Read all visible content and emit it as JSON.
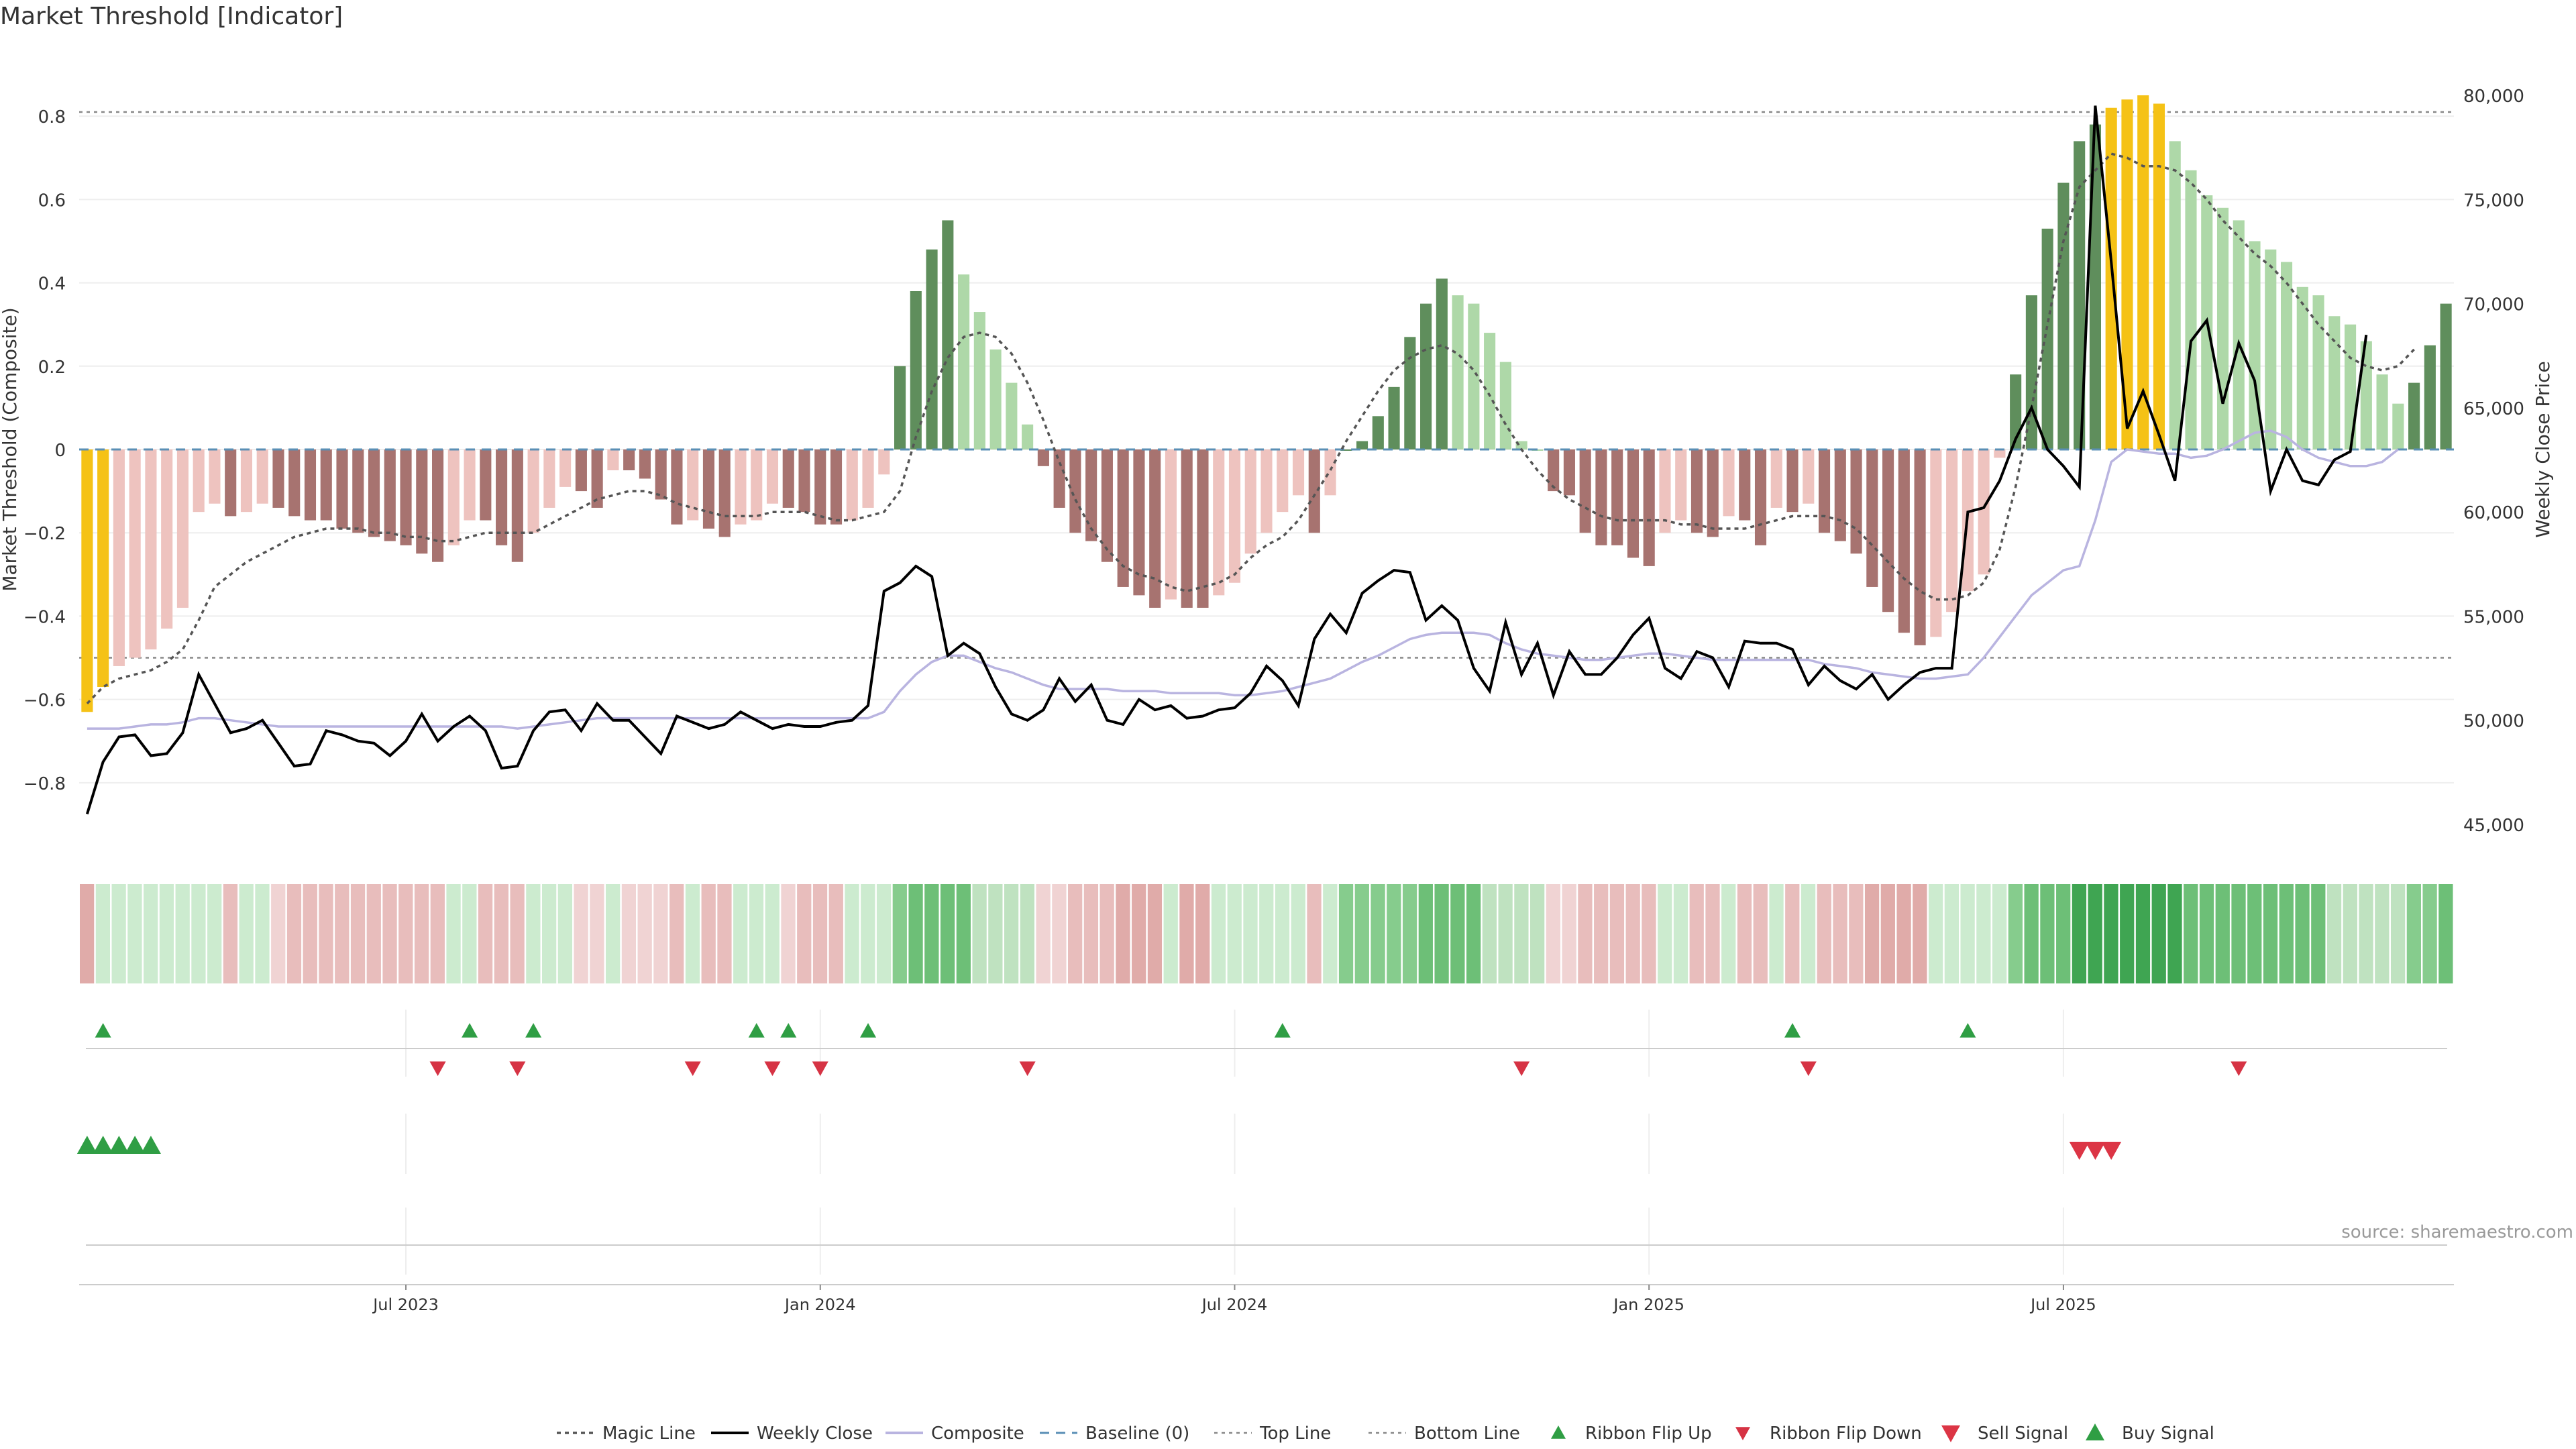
{
  "title": "Market Threshold [Indicator]",
  "source": "source: sharemaestro.com",
  "chart_data": {
    "type": "bar",
    "y_left": {
      "label": "Market Threshold (Composite)",
      "range": [
        -0.95,
        0.95
      ],
      "ticks": [
        0.8,
        0.6,
        0.4,
        0.2,
        0,
        -0.2,
        -0.4,
        -0.6,
        -0.8
      ],
      "tick_labels": [
        "0.8",
        "0.6",
        "0.4",
        "0.2",
        "0",
        "−0.2",
        "−0.4",
        "−0.6",
        "−0.8"
      ]
    },
    "y_right": {
      "label": "Weekly Close Price",
      "range": [
        44000,
        82000
      ],
      "ticks": [
        80000,
        75000,
        70000,
        65000,
        60000,
        55000,
        50000,
        45000
      ],
      "tick_labels": [
        "80,000",
        "75,000",
        "70,000",
        "65,000",
        "60,000",
        "55,000",
        "50,000",
        "45,000"
      ]
    },
    "x_axis": {
      "start": "2023-01-09",
      "weeks": 144,
      "ticks": [
        {
          "label": "Jul 2023",
          "week": 20
        },
        {
          "label": "Jan 2024",
          "week": 46
        },
        {
          "label": "Jul 2024",
          "week": 72
        },
        {
          "label": "Jan 2025",
          "week": 98
        },
        {
          "label": "Jul 2025",
          "week": 124
        }
      ]
    },
    "top_line": 0.81,
    "bottom_line": -0.5,
    "baseline": 0,
    "composite_bars": [
      -0.63,
      -0.57,
      -0.52,
      -0.5,
      -0.48,
      -0.43,
      -0.38,
      -0.15,
      -0.13,
      -0.16,
      -0.15,
      -0.13,
      -0.14,
      -0.16,
      -0.17,
      -0.17,
      -0.19,
      -0.2,
      -0.21,
      -0.22,
      -0.23,
      -0.25,
      -0.27,
      -0.23,
      -0.17,
      -0.17,
      -0.23,
      -0.27,
      -0.2,
      -0.14,
      -0.09,
      -0.1,
      -0.14,
      -0.05,
      -0.05,
      -0.07,
      -0.12,
      -0.18,
      -0.17,
      -0.19,
      -0.21,
      -0.18,
      -0.17,
      -0.13,
      -0.14,
      -0.15,
      -0.18,
      -0.18,
      -0.17,
      -0.14,
      -0.06,
      0.2,
      0.38,
      0.48,
      0.55,
      0.42,
      0.33,
      0.24,
      0.16,
      0.06,
      -0.04,
      -0.14,
      -0.2,
      -0.22,
      -0.27,
      -0.33,
      -0.35,
      -0.38,
      -0.36,
      -0.38,
      -0.38,
      -0.35,
      -0.32,
      -0.25,
      -0.2,
      -0.15,
      -0.11,
      -0.2,
      -0.11,
      0.0,
      0.02,
      0.08,
      0.15,
      0.27,
      0.35,
      0.41,
      0.37,
      0.35,
      0.28,
      0.21,
      0.02,
      0.0,
      -0.1,
      -0.11,
      -0.2,
      -0.23,
      -0.23,
      -0.26,
      -0.28,
      -0.2,
      -0.17,
      -0.2,
      -0.21,
      -0.16,
      -0.17,
      -0.23,
      -0.14,
      -0.15,
      -0.13,
      -0.2,
      -0.22,
      -0.25,
      -0.33,
      -0.39,
      -0.44,
      -0.47,
      -0.45,
      -0.39,
      -0.34,
      -0.3,
      -0.02,
      0.18,
      0.37,
      0.53,
      0.64,
      0.74,
      0.78,
      0.82,
      0.84,
      0.85,
      0.83,
      0.74,
      0.67,
      0.61,
      0.58,
      0.55,
      0.5,
      0.48,
      0.45,
      0.39,
      0.37,
      0.32,
      0.3,
      0.26,
      0.18,
      0.11,
      0.16,
      0.25,
      0.35
    ],
    "weekly_close": [
      45500,
      48000,
      49200,
      49300,
      48300,
      48400,
      49400,
      52200,
      50800,
      49400,
      49600,
      50000,
      48900,
      47800,
      47900,
      49500,
      49300,
      49000,
      48900,
      48300,
      49000,
      50300,
      49000,
      49700,
      50200,
      49500,
      47700,
      47800,
      49500,
      50400,
      50500,
      49500,
      50800,
      50000,
      50000,
      49200,
      48400,
      50200,
      49900,
      49600,
      49800,
      50400,
      50000,
      49600,
      49800,
      49700,
      49700,
      49900,
      50000,
      50700,
      56200,
      56600,
      57400,
      56900,
      53100,
      53700,
      53200,
      51600,
      50300,
      50000,
      50500,
      52000,
      50900,
      51700,
      50000,
      49800,
      51000,
      50500,
      50700,
      50100,
      50200,
      50500,
      50600,
      51300,
      52600,
      51900,
      50700,
      53900,
      55100,
      54200,
      56100,
      56700,
      57200,
      57100,
      54800,
      55500,
      54800,
      52500,
      51400,
      54700,
      52200,
      53700,
      51200,
      53300,
      52200,
      52200,
      53000,
      54100,
      54900,
      52500,
      52000,
      53300,
      53000,
      51600,
      53800,
      53700,
      53700,
      53400,
      51700,
      52600,
      51900,
      51500,
      52200,
      51000,
      51700,
      52300,
      52500,
      52500,
      60000,
      60200,
      61500,
      63500,
      65000,
      63000,
      62200,
      61200,
      79500,
      72000,
      64000,
      65800,
      63700,
      61500,
      68200,
      69200,
      65200,
      68100,
      66300,
      61000,
      63000,
      61500,
      61300,
      62500,
      62900,
      68500
    ],
    "composite_line": [
      -0.67,
      -0.67,
      -0.67,
      -0.665,
      -0.66,
      -0.66,
      -0.655,
      -0.645,
      -0.645,
      -0.65,
      -0.655,
      -0.66,
      -0.665,
      -0.665,
      -0.665,
      -0.665,
      -0.665,
      -0.665,
      -0.665,
      -0.665,
      -0.665,
      -0.665,
      -0.665,
      -0.665,
      -0.665,
      -0.665,
      -0.665,
      -0.67,
      -0.665,
      -0.66,
      -0.655,
      -0.65,
      -0.645,
      -0.645,
      -0.645,
      -0.645,
      -0.645,
      -0.645,
      -0.645,
      -0.645,
      -0.645,
      -0.645,
      -0.645,
      -0.645,
      -0.645,
      -0.645,
      -0.645,
      -0.645,
      -0.645,
      -0.645,
      -0.63,
      -0.58,
      -0.54,
      -0.51,
      -0.495,
      -0.495,
      -0.51,
      -0.525,
      -0.535,
      -0.55,
      -0.565,
      -0.575,
      -0.575,
      -0.575,
      -0.575,
      -0.58,
      -0.58,
      -0.58,
      -0.585,
      -0.585,
      -0.585,
      -0.585,
      -0.59,
      -0.59,
      -0.585,
      -0.58,
      -0.57,
      -0.56,
      -0.55,
      -0.53,
      -0.51,
      -0.495,
      -0.475,
      -0.455,
      -0.445,
      -0.44,
      -0.44,
      -0.44,
      -0.445,
      -0.465,
      -0.48,
      -0.49,
      -0.495,
      -0.5,
      -0.505,
      -0.505,
      -0.5,
      -0.495,
      -0.49,
      -0.49,
      -0.495,
      -0.5,
      -0.505,
      -0.505,
      -0.505,
      -0.505,
      -0.505,
      -0.505,
      -0.505,
      -0.515,
      -0.52,
      -0.525,
      -0.535,
      -0.54,
      -0.545,
      -0.55,
      -0.55,
      -0.545,
      -0.54,
      -0.5,
      -0.45,
      -0.4,
      -0.35,
      -0.32,
      -0.29,
      -0.28,
      -0.17,
      -0.03,
      0.0,
      -0.005,
      -0.01,
      -0.01,
      -0.02,
      -0.015,
      0.0,
      0.02,
      0.04,
      0.045,
      0.03,
      0.0,
      -0.02,
      -0.03,
      -0.04,
      -0.04,
      -0.03,
      0.0
    ],
    "magic_line": [
      -0.61,
      -0.57,
      -0.55,
      -0.54,
      -0.53,
      -0.51,
      -0.48,
      -0.41,
      -0.33,
      -0.3,
      -0.27,
      -0.25,
      -0.23,
      -0.21,
      -0.2,
      -0.19,
      -0.19,
      -0.19,
      -0.2,
      -0.2,
      -0.21,
      -0.21,
      -0.22,
      -0.22,
      -0.21,
      -0.2,
      -0.2,
      -0.2,
      -0.2,
      -0.18,
      -0.16,
      -0.14,
      -0.12,
      -0.11,
      -0.1,
      -0.1,
      -0.11,
      -0.13,
      -0.14,
      -0.15,
      -0.16,
      -0.16,
      -0.16,
      -0.15,
      -0.15,
      -0.15,
      -0.16,
      -0.17,
      -0.17,
      -0.16,
      -0.15,
      -0.1,
      0.03,
      0.14,
      0.22,
      0.27,
      0.28,
      0.27,
      0.23,
      0.16,
      0.07,
      -0.03,
      -0.12,
      -0.19,
      -0.24,
      -0.28,
      -0.3,
      -0.31,
      -0.33,
      -0.34,
      -0.33,
      -0.32,
      -0.3,
      -0.26,
      -0.23,
      -0.21,
      -0.17,
      -0.11,
      -0.05,
      0.02,
      0.08,
      0.14,
      0.19,
      0.22,
      0.24,
      0.25,
      0.23,
      0.19,
      0.13,
      0.06,
      0.0,
      -0.05,
      -0.09,
      -0.12,
      -0.14,
      -0.16,
      -0.17,
      -0.17,
      -0.17,
      -0.17,
      -0.18,
      -0.18,
      -0.19,
      -0.19,
      -0.19,
      -0.18,
      -0.17,
      -0.16,
      -0.16,
      -0.16,
      -0.17,
      -0.19,
      -0.23,
      -0.27,
      -0.31,
      -0.34,
      -0.36,
      -0.36,
      -0.35,
      -0.32,
      -0.24,
      -0.09,
      0.1,
      0.3,
      0.5,
      0.63,
      0.67,
      0.71,
      0.7,
      0.68,
      0.68,
      0.67,
      0.64,
      0.6,
      0.55,
      0.51,
      0.47,
      0.44,
      0.4,
      0.35,
      0.3,
      0.26,
      0.22,
      0.2,
      0.19,
      0.2,
      0.24
    ],
    "ribbon_flip_up_weeks": [
      1,
      24,
      28,
      42,
      44,
      49,
      75,
      107,
      118
    ],
    "ribbon_flip_down_weeks": [
      22,
      27,
      38,
      43,
      46,
      59,
      90,
      108,
      135
    ],
    "buy_signal_weeks": [
      0,
      1,
      2,
      3,
      4
    ],
    "sell_signal_weeks": [
      125,
      126,
      127
    ],
    "legend": [
      "Magic Line",
      "Weekly Close",
      "Composite",
      "Baseline (0)",
      "Top Line",
      "Bottom Line",
      "Ribbon Flip Up",
      "Ribbon Flip Down",
      "Sell Signal",
      "Buy Signal"
    ],
    "colors": {
      "extreme": "#f5c216",
      "pos_strong": "#5f8e5c",
      "pos_weak": "#aed8a8",
      "neg_strong": "#a77370",
      "neg_weak": "#eec3bf",
      "close": "#000000",
      "composite": "#b9b4e0",
      "magic": "#555555",
      "baseline": "#5a8fb5",
      "up": "#2f9e44",
      "down": "#d63344",
      "sell": "#dc3545",
      "buy": "#2f9e44"
    }
  }
}
